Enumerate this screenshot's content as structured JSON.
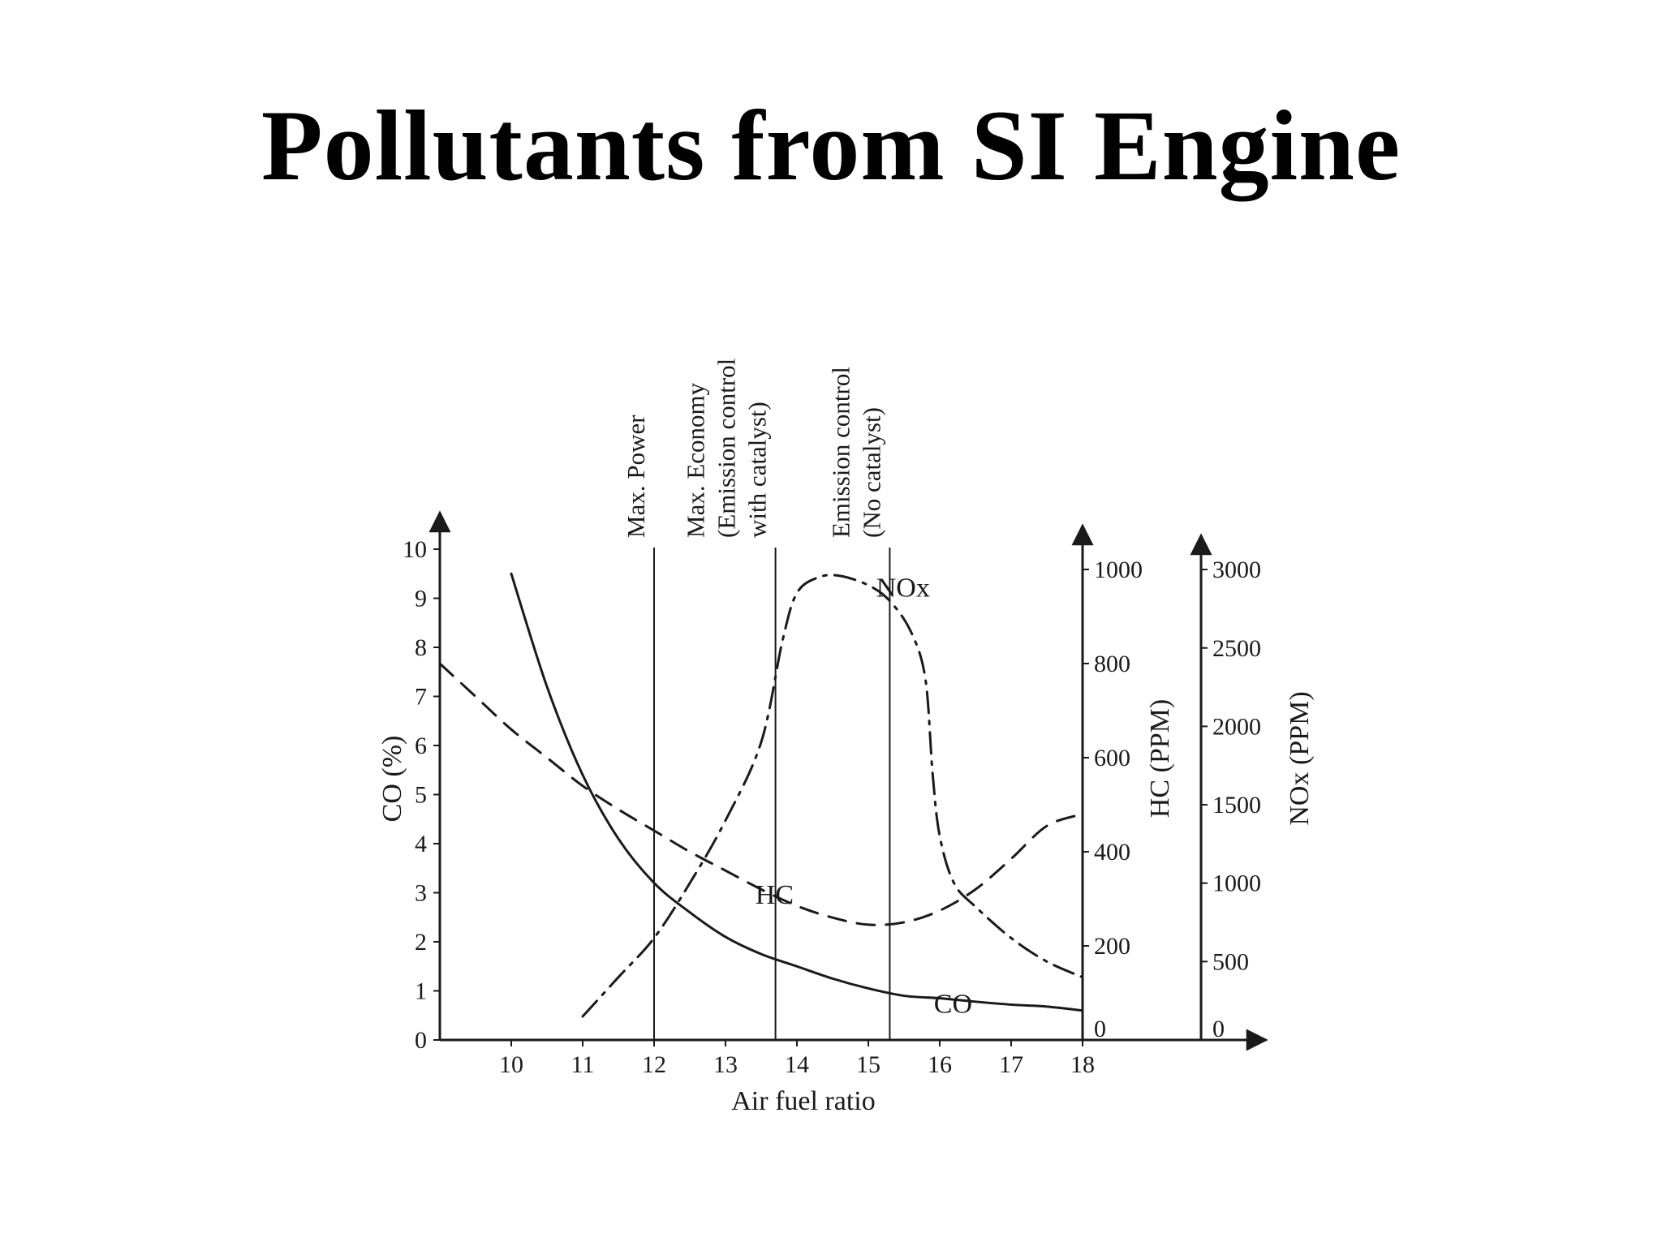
{
  "page": {
    "title": "Pollutants from SI Engine"
  },
  "chart_data": {
    "type": "line",
    "title": "Pollutants from SI Engine",
    "xlabel": "Air fuel ratio",
    "xlim": [
      9,
      18
    ],
    "xticks": [
      10,
      11,
      12,
      13,
      14,
      15,
      16,
      17,
      18
    ],
    "axes": [
      {
        "id": "co",
        "label": "CO (%)",
        "ylim": [
          0,
          10
        ],
        "ticks": [
          0,
          1,
          2,
          3,
          4,
          5,
          6,
          7,
          8,
          9,
          10
        ]
      },
      {
        "id": "hc",
        "label": "HC (PPM)",
        "ylim": [
          0,
          1000
        ],
        "ticks": [
          0,
          200,
          400,
          600,
          800,
          1000
        ]
      },
      {
        "id": "nox",
        "label": "NOx (PPM)",
        "ylim": [
          0,
          3000
        ],
        "ticks": [
          0,
          500,
          1000,
          1500,
          2000,
          2500,
          3000
        ]
      }
    ],
    "series": [
      {
        "name": "CO",
        "axis": "co",
        "style": "solid",
        "x": [
          10.0,
          10.5,
          11.0,
          11.5,
          12.0,
          12.5,
          13.0,
          13.5,
          14.0,
          14.5,
          15.0,
          15.5,
          16.0,
          16.5,
          17.0,
          17.5,
          18.0
        ],
        "y": [
          9.5,
          7.2,
          5.4,
          4.1,
          3.2,
          2.6,
          2.1,
          1.75,
          1.5,
          1.25,
          1.05,
          0.9,
          0.85,
          0.78,
          0.72,
          0.68,
          0.6
        ]
      },
      {
        "name": "HC",
        "axis": "hc",
        "style": "dashed",
        "x": [
          9.0,
          9.5,
          10.0,
          10.5,
          11.0,
          11.5,
          12.0,
          12.5,
          13.0,
          13.5,
          14.0,
          14.5,
          15.0,
          15.5,
          16.0,
          16.5,
          17.0,
          17.5,
          18.0
        ],
        "y": [
          800,
          730,
          660,
          600,
          540,
          490,
          445,
          400,
          360,
          320,
          285,
          260,
          245,
          250,
          275,
          320,
          385,
          455,
          480
        ]
      },
      {
        "name": "NOx",
        "axis": "nox",
        "style": "dash-dot",
        "x": [
          11.0,
          11.5,
          12.0,
          12.5,
          13.0,
          13.5,
          13.8,
          14.0,
          14.3,
          14.6,
          15.0,
          15.3,
          15.6,
          15.8,
          15.9,
          16.0,
          16.2,
          16.5,
          17.0,
          17.5,
          18.0
        ],
        "y": [
          150,
          400,
          650,
          1000,
          1400,
          1900,
          2550,
          2850,
          2950,
          2960,
          2900,
          2800,
          2600,
          2300,
          1700,
          1300,
          1000,
          850,
          650,
          500,
          400
        ]
      }
    ],
    "markers": [
      {
        "x": 12.0,
        "lines": [
          "Max. Power"
        ]
      },
      {
        "x": 13.7,
        "lines": [
          "Max. Economy",
          "(Emission control",
          "with catalyst)"
        ]
      },
      {
        "x": 15.3,
        "lines": [
          "Emission control",
          "(No catalyst)"
        ]
      }
    ],
    "grid": false,
    "legend": "none"
  }
}
